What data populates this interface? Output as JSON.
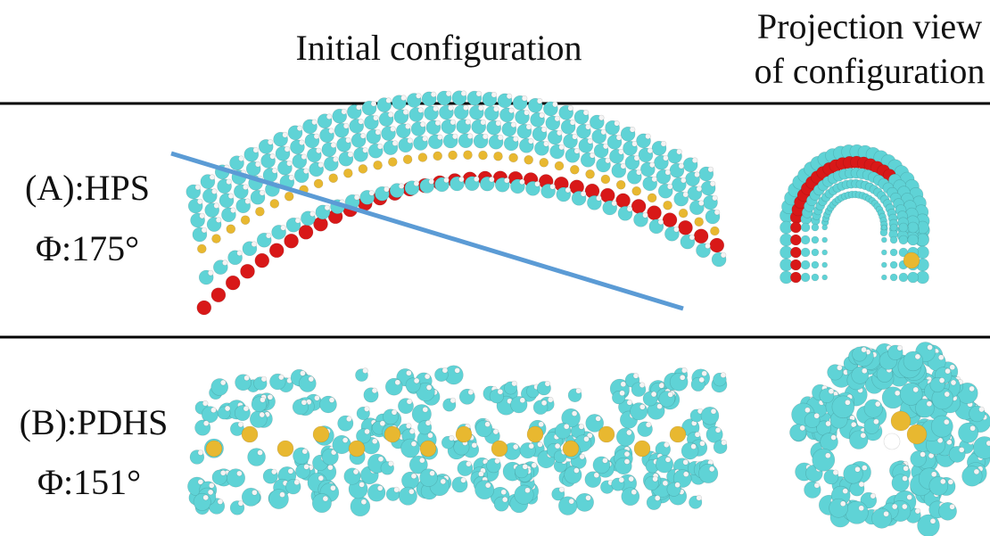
{
  "header": {
    "initial": "Initial configuration",
    "projection_line1": "Projection view",
    "projection_line2": "of configuration"
  },
  "rows": [
    {
      "label": "(A):HPS",
      "angle": "Φ:175°"
    },
    {
      "label": "(B):PDHS",
      "angle": "Φ:151°"
    }
  ]
}
